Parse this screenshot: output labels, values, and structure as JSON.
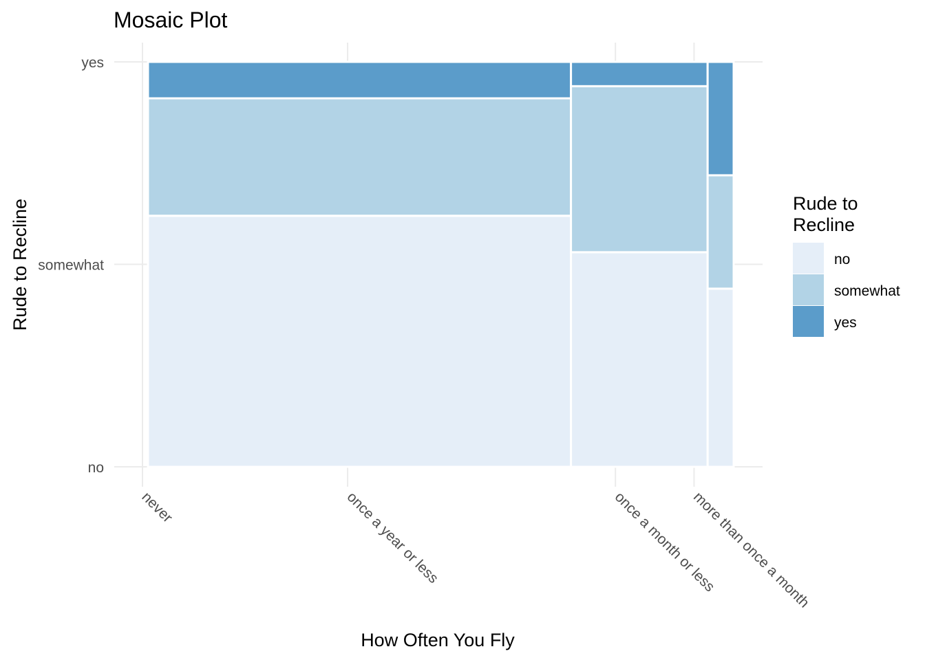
{
  "chart_data": {
    "type": "mosaic",
    "title": "Mosaic Plot",
    "xlabel": "How Often You Fly",
    "ylabel": "Rude to Recline",
    "legend": {
      "title_lines": [
        "Rude to",
        "Recline"
      ],
      "placement": "right",
      "entries": [
        {
          "label": "no",
          "color": "#e5eef8"
        },
        {
          "label": "somewhat",
          "color": "#b2d3e6"
        },
        {
          "label": "yes",
          "color": "#5b9cca"
        }
      ]
    },
    "x_categories": [
      "never",
      "once a year or less",
      "once a month or less",
      "more than once a month"
    ],
    "x_shares": [
      0.65,
      0.21,
      0.04
    ],
    "x_tick_positions": [
      0.0,
      0.347,
      0.8,
      0.933
    ],
    "y_categories": [
      "no",
      "somewhat",
      "yes"
    ],
    "y_tick_positions": [
      0.0,
      0.5,
      1.0
    ],
    "grid": true,
    "columns": [
      {
        "category": "once a year or less",
        "share": 0.65,
        "no": 0.62,
        "somewhat": 0.29,
        "yes": 0.09
      },
      {
        "category": "once a month or less",
        "share": 0.21,
        "no": 0.53,
        "somewhat": 0.41,
        "yes": 0.06
      },
      {
        "category": "more than once a month",
        "share": 0.04,
        "no": 0.44,
        "somewhat": 0.28,
        "yes": 0.28
      }
    ]
  }
}
